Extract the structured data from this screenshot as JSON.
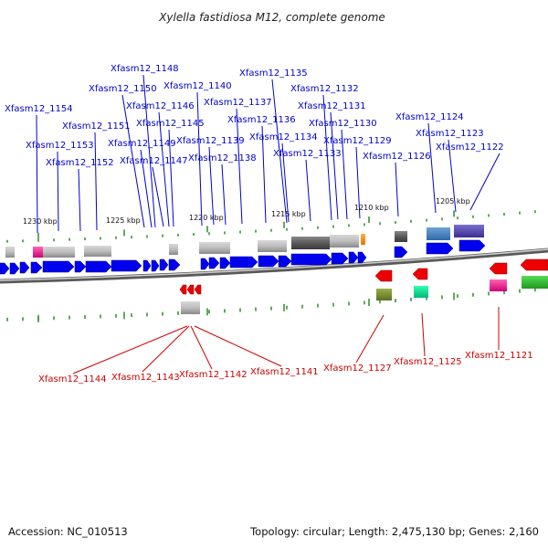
{
  "title": "Xylella fastidiosa M12, complete genome",
  "footer": {
    "accession": "Accession: NC_010513",
    "topology": "Topology: circular; Length: 2,475,130 bp; Genes: 2,160"
  },
  "colors": {
    "forward_label": "#0000cc",
    "reverse_label": "#cc0000",
    "forward_gene": "#0000ee",
    "reverse_gene": "#ee0000",
    "backbone": "#888888",
    "tick": "#2e8b2e"
  },
  "scale_labels": [
    "1230 kbp",
    "1225 kbp",
    "1220 kbp",
    "1215 kbp",
    "1210 kbp",
    "1205 kbp"
  ],
  "forward_labels": [
    "Xfasm12_1154",
    "Xfasm12_1153",
    "Xfasm12_1152",
    "Xfasm12_1151",
    "Xfasm12_1150",
    "Xfasm12_1149",
    "Xfasm12_1148",
    "Xfasm12_1147",
    "Xfasm12_1146",
    "Xfasm12_1145",
    "Xfasm12_1140",
    "Xfasm12_1139",
    "Xfasm12_1138",
    "Xfasm12_1137",
    "Xfasm12_1136",
    "Xfasm12_1135",
    "Xfasm12_1134",
    "Xfasm12_1133",
    "Xfasm12_1132",
    "Xfasm12_1131",
    "Xfasm12_1130",
    "Xfasm12_1129",
    "Xfasm12_1126",
    "Xfasm12_1124",
    "Xfasm12_1123",
    "Xfasm12_1122"
  ],
  "reverse_labels": [
    "Xfasm12_1144",
    "Xfasm12_1143",
    "Xfasm12_1142",
    "Xfasm12_1141",
    "Xfasm12_1127",
    "Xfasm12_1125",
    "Xfasm12_1121"
  ]
}
